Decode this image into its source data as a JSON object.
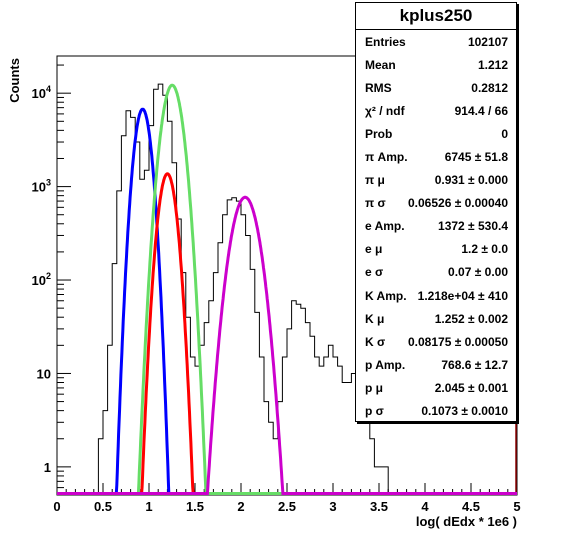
{
  "chart_data": {
    "type": "histogram",
    "xlabel": "log( dEdx * 1e6 )",
    "ylabel": "Counts",
    "xlim": [
      0,
      5
    ],
    "ylim": [
      0.5,
      25000
    ],
    "yscale": "log",
    "x_ticks": [
      "0",
      "0.5",
      "1",
      "1.5",
      "2",
      "2.5",
      "3",
      "3.5",
      "4",
      "4.5",
      "5"
    ],
    "y_ticks": [
      {
        "value": 1,
        "base": "1",
        "exp": ""
      },
      {
        "value": 10,
        "base": "10",
        "exp": ""
      },
      {
        "value": 100,
        "base": "10",
        "exp": "2"
      },
      {
        "value": 1000,
        "base": "10",
        "exp": "3"
      },
      {
        "value": 10000,
        "base": "10",
        "exp": "4"
      }
    ],
    "histogram": {
      "x": [
        0.475,
        0.525,
        0.575,
        0.625,
        0.675,
        0.725,
        0.775,
        0.825,
        0.875,
        0.925,
        0.975,
        1.025,
        1.075,
        1.125,
        1.175,
        1.225,
        1.275,
        1.325,
        1.375,
        1.425,
        1.475,
        1.525,
        1.575,
        1.625,
        1.675,
        1.725,
        1.775,
        1.825,
        1.875,
        1.925,
        1.975,
        2.025,
        2.075,
        2.125,
        2.175,
        2.225,
        2.275,
        2.325,
        2.375,
        2.425,
        2.475,
        2.525,
        2.575,
        2.625,
        2.675,
        2.725,
        2.775,
        2.825,
        2.875,
        2.925,
        2.975,
        3.025,
        3.075,
        3.125,
        3.175,
        3.225,
        3.275,
        3.325,
        3.375,
        3.425,
        3.475,
        3.525,
        3.575,
        3.625,
        3.675,
        3.725,
        3.775,
        3.825,
        3.875,
        3.925,
        3.975
      ],
      "counts": [
        2,
        4,
        20,
        150,
        900,
        3500,
        6500,
        5500,
        3000,
        1200,
        1500,
        4500,
        11000,
        12500,
        9500,
        5000,
        1800,
        450,
        120,
        40,
        15,
        12,
        20,
        35,
        60,
        120,
        250,
        500,
        720,
        760,
        700,
        500,
        300,
        130,
        45,
        15,
        5,
        3,
        2,
        5,
        15,
        30,
        60,
        55,
        50,
        35,
        25,
        15,
        12,
        15,
        20,
        15,
        12,
        8,
        8,
        10,
        6,
        4,
        3,
        2,
        1,
        1,
        1,
        0,
        0,
        0,
        0,
        0,
        0,
        0,
        0
      ]
    },
    "series": [
      {
        "name": "π",
        "color": "#0000ff",
        "amp": 6745,
        "mu": 0.931,
        "sigma": 0.06526
      },
      {
        "name": "e",
        "color": "#ff0000",
        "amp": 1372,
        "mu": 1.2,
        "sigma": 0.07
      },
      {
        "name": "K",
        "color": "#66dd66",
        "amp": 12180,
        "mu": 1.252,
        "sigma": 0.08175
      },
      {
        "name": "p",
        "color": "#cc00cc",
        "amp": 768.6,
        "mu": 2.045,
        "sigma": 0.1073
      }
    ]
  },
  "stats": {
    "title": "kplus250",
    "rows": [
      {
        "name": "Entries",
        "value": "102107"
      },
      {
        "name": "Mean",
        "value": "1.212"
      },
      {
        "name": "RMS",
        "value": "0.2812"
      },
      {
        "name": "χ² / ndf",
        "value": "914.4 / 66"
      },
      {
        "name": "Prob",
        "value": "0"
      },
      {
        "name": "π Amp.",
        "value": "6745 ± 51.8"
      },
      {
        "name": "π μ",
        "value": "0.931 ± 0.000"
      },
      {
        "name": "π σ",
        "value": "0.06526 ± 0.00040"
      },
      {
        "name": "e Amp.",
        "value": "1372 ± 530.4"
      },
      {
        "name": "e μ",
        "value": "1.2 ± 0.0"
      },
      {
        "name": "e σ",
        "value": "0.07 ± 0.00"
      },
      {
        "name": "K Amp.",
        "value": "1.218e+04 ± 410"
      },
      {
        "name": "K μ",
        "value": "1.252 ± 0.002"
      },
      {
        "name": "K σ",
        "value": "0.08175 ± 0.00050"
      },
      {
        "name": "p Amp.",
        "value": "768.6 ± 12.7"
      },
      {
        "name": "p μ",
        "value": "2.045 ± 0.001"
      },
      {
        "name": "p σ",
        "value": "0.1073 ± 0.0010"
      }
    ]
  }
}
